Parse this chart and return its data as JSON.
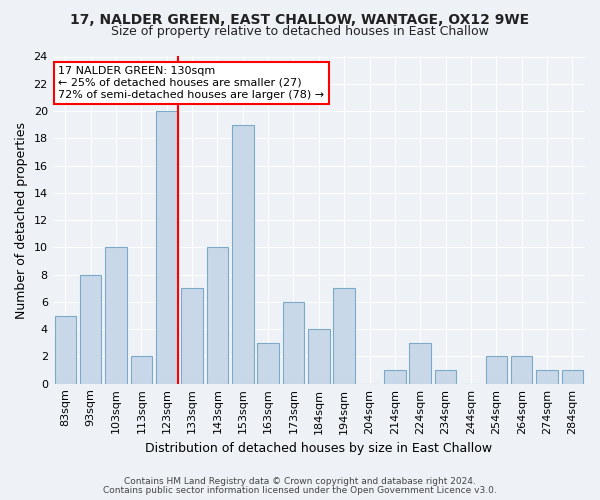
{
  "title1": "17, NALDER GREEN, EAST CHALLOW, WANTAGE, OX12 9WE",
  "title2": "Size of property relative to detached houses in East Challow",
  "xlabel": "Distribution of detached houses by size in East Challow",
  "ylabel": "Number of detached properties",
  "categories": [
    "83sqm",
    "93sqm",
    "103sqm",
    "113sqm",
    "123sqm",
    "133sqm",
    "143sqm",
    "153sqm",
    "163sqm",
    "173sqm",
    "184sqm",
    "194sqm",
    "204sqm",
    "214sqm",
    "224sqm",
    "234sqm",
    "244sqm",
    "254sqm",
    "264sqm",
    "274sqm",
    "284sqm"
  ],
  "values": [
    5,
    8,
    10,
    2,
    20,
    7,
    10,
    19,
    3,
    6,
    4,
    7,
    0,
    1,
    3,
    1,
    0,
    2,
    2,
    1,
    1
  ],
  "bar_color": "#c8d8e8",
  "bar_edge_color": "#7aaac8",
  "vline_x_index": 4.43,
  "vline_color": "red",
  "annotation_line1": "17 NALDER GREEN: 130sqm",
  "annotation_line2": "← 25% of detached houses are smaller (27)",
  "annotation_line3": "72% of semi-detached houses are larger (78) →",
  "annotation_box_color": "white",
  "annotation_box_edge_color": "red",
  "ylim": [
    0,
    24
  ],
  "yticks": [
    0,
    2,
    4,
    6,
    8,
    10,
    12,
    14,
    16,
    18,
    20,
    22,
    24
  ],
  "footnote1": "Contains HM Land Registry data © Crown copyright and database right 2024.",
  "footnote2": "Contains public sector information licensed under the Open Government Licence v3.0.",
  "bg_color": "#eef2f7",
  "plot_bg_color": "#eef2f7",
  "grid_color": "#ffffff",
  "title1_fontsize": 10,
  "title2_fontsize": 9,
  "ylabel_fontsize": 9,
  "xlabel_fontsize": 9,
  "tick_fontsize": 8,
  "footnote_fontsize": 6.5
}
